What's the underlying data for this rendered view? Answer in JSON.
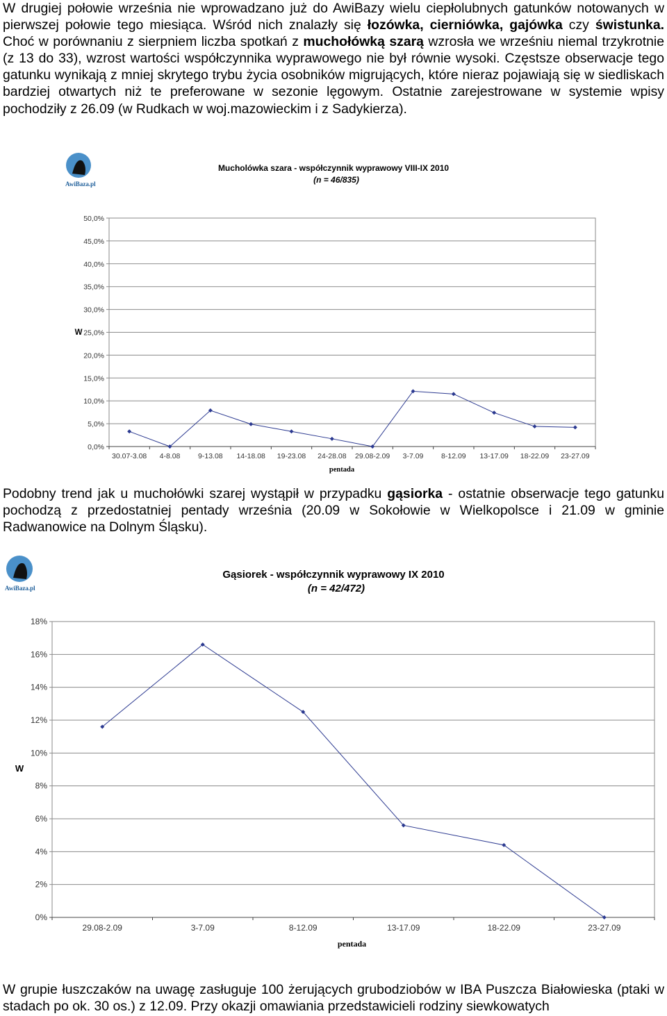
{
  "paragraph1": {
    "p1": "W drugiej połowie września nie wprowadzano już do AwiBazy wielu ciepłolubnych gatunków notowanych w pierwszej połowie tego miesiąca. Wśród nich znalazły się ",
    "b1": "łozówka, cierniówka, gajówka",
    "p2": " czy ",
    "b2": "świstunka.",
    "p3": " Choć w porównaniu z sierpniem liczba spotkań z ",
    "b3": "muchołówką szarą",
    "p4": " wzrosła we wrześniu niemal trzykrotnie (z 13 do 33), wzrost wartości współczynnika wyprawowego nie był równie wysoki. Częstsze obserwacje tego gatunku wynikają z mniej skrytego trybu życia osobników migrujących, które nieraz pojawiają się w siedliskach bardziej otwartych niż te preferowane w sezonie lęgowym. Ostatnie zarejestrowane w systemie wpisy pochodziły z 26.09 (w Rudkach w woj.mazowieckim i z Sadykierza)."
  },
  "paragraph2": {
    "p1": "Podobny trend jak u muchołówki szarej wystąpił w przypadku ",
    "b1": "gąsiorka",
    "p2": " - ostatnie obserwacje tego gatunku pochodzą z przedostatniej pentady września (20.09 w Sokołowie w Wielkopolsce i 21.09 w gminie Radwanowice na Dolnym Śląsku)."
  },
  "paragraph3": {
    "text": "W grupie łuszczaków na uwagę zasługuje 100 żerujących grubodziobów w IBA Puszcza Białowieska (ptaki w stadach po ok. 30 os.) z 12.09. Przy okazji omawiania przedstawicieli rodziny siewkowatych"
  },
  "logo": {
    "text": "AwiBaza.pl",
    "icon": "bird-silhouette-icon"
  },
  "chart_data": [
    {
      "type": "line",
      "title": "Mucholówka szara - współczynnik wyprawowy VIII-IX 2010",
      "subtitle": "(n = 46/835)",
      "xlabel": "pentada",
      "ylabel": "W",
      "ylim": [
        0,
        50
      ],
      "yticks": [
        "0,0%",
        "5,0%",
        "10,0%",
        "15,0%",
        "20,0%",
        "25,0%",
        "30,0%",
        "35,0%",
        "40,0%",
        "45,0%",
        "50,0%"
      ],
      "categories": [
        "30.07-3.08",
        "4-8.08",
        "9-13.08",
        "14-18.08",
        "19-23.08",
        "24-28.08",
        "29.08-2.09",
        "3-7.09",
        "8-12.09",
        "13-17.09",
        "18-22.09",
        "23-27.09"
      ],
      "values": [
        3.3,
        0.0,
        7.9,
        4.9,
        3.3,
        1.7,
        0.0,
        12.1,
        11.5,
        7.4,
        4.4,
        4.2
      ],
      "grid": true,
      "color": "#2b3990"
    },
    {
      "type": "line",
      "title": "Gąsiorek - współczynnik wyprawowy IX 2010",
      "subtitle": "(n = 42/472)",
      "xlabel": "pentada",
      "ylabel": "W",
      "ylim": [
        0,
        18
      ],
      "yticks": [
        "0%",
        "2%",
        "4%",
        "6%",
        "8%",
        "10%",
        "12%",
        "14%",
        "16%",
        "18%"
      ],
      "categories": [
        "29.08-2.09",
        "3-7.09",
        "8-12.09",
        "13-17.09",
        "18-22.09",
        "23-27.09"
      ],
      "values": [
        11.6,
        16.6,
        12.5,
        5.6,
        4.4,
        0.0
      ],
      "grid": true,
      "color": "#2b3990"
    }
  ]
}
